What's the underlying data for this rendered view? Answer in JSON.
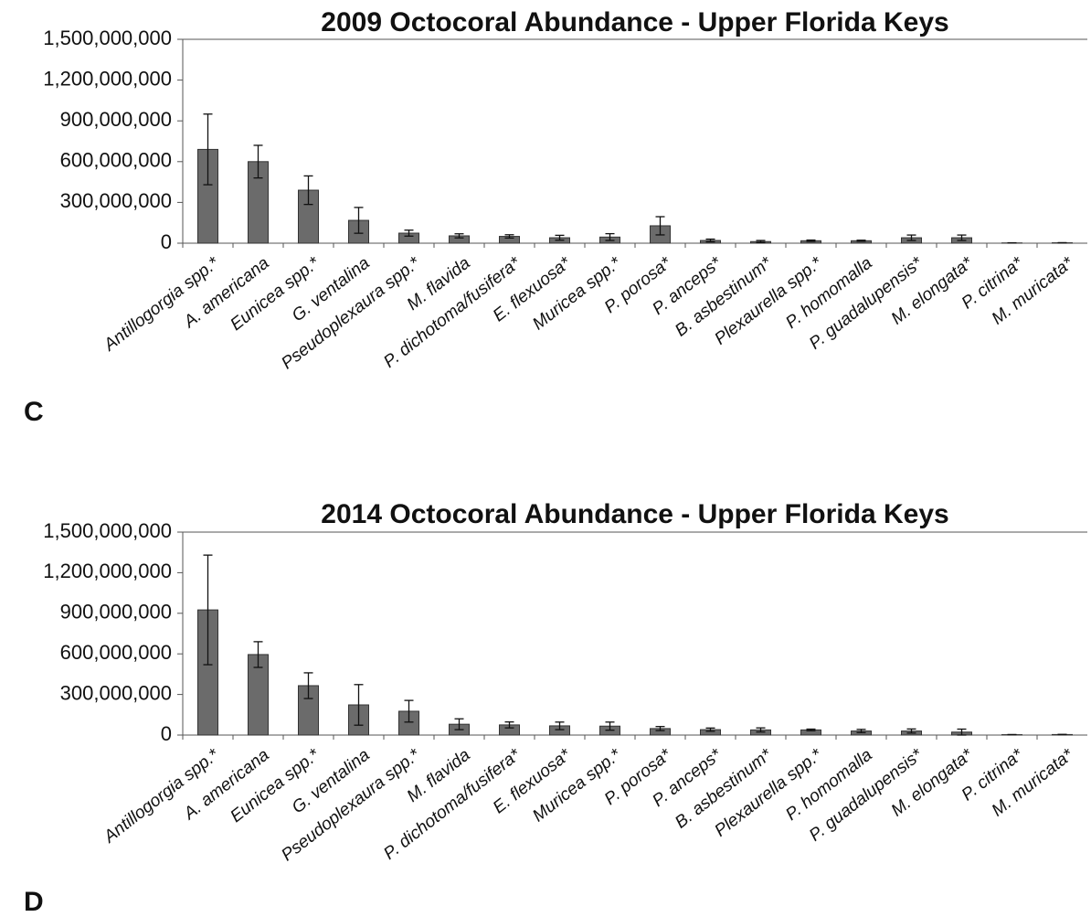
{
  "chart_data": [
    {
      "type": "bar",
      "title": "2009 Octocoral Abundance - Upper Florida Keys",
      "panel": "C",
      "categories": [
        "Antillogorgia spp.*",
        "A. americana",
        "Eunicea spp.*",
        "G. ventalina",
        "Pseudoplexaura spp.*",
        "M. flavida",
        "P. dichotoma/fusifera*",
        "E. flexuosa*",
        "Muricea spp.*",
        "P. porosa*",
        "P. anceps*",
        "B. asbestinum*",
        "Plexaurella spp.*",
        "P. homomalla",
        "P. guadalupensis*",
        "M. elongata*",
        "P. citrina*",
        "M. muricata*"
      ],
      "values": [
        690000000,
        600000000,
        390000000,
        168000000,
        74000000,
        54000000,
        50000000,
        40000000,
        45000000,
        128000000,
        20000000,
        12000000,
        18000000,
        18000000,
        40000000,
        40000000,
        2000000,
        3000000
      ],
      "errors": [
        260000000,
        120000000,
        105000000,
        95000000,
        22000000,
        15000000,
        12000000,
        18000000,
        25000000,
        67000000,
        10000000,
        8000000,
        5000000,
        4000000,
        20000000,
        20000000,
        1000000,
        1000000
      ],
      "color": "#6b6b6b",
      "ylim": [
        0,
        1500000000
      ],
      "yticks": [
        0,
        {
          "value": 300000000,
          "label": "300,000,000"
        },
        {
          "value": 600000000,
          "label": "600,000,000"
        },
        {
          "value": 900000000,
          "label": "900,000,000"
        },
        {
          "value": 1200000000,
          "label": "1,200,000,000"
        },
        {
          "value": 1500000000,
          "label": "1,500,000,000"
        }
      ]
    },
    {
      "type": "bar",
      "title": "2014 Octocoral Abundance - Upper Florida Keys",
      "panel": "D",
      "categories": [
        "Antillogorgia spp.*",
        "A. americana",
        "Eunicea spp.*",
        "G. ventalina",
        "Pseudoplexaura spp.*",
        "M. flavida",
        "P. dichotoma/fusifera*",
        "E. flexuosa*",
        "Muricea spp.*",
        "P. porosa*",
        "P. anceps*",
        "B. asbestinum*",
        "Plexaurella spp.*",
        "P. homomalla",
        "P. guadalupensis*",
        "M. elongata*",
        "P. citrina*",
        "M. muricata*"
      ],
      "values": [
        925000000,
        595000000,
        365000000,
        223000000,
        176000000,
        80000000,
        75000000,
        68000000,
        66000000,
        48000000,
        40000000,
        38000000,
        38000000,
        30000000,
        30000000,
        22000000,
        3000000,
        4000000
      ],
      "errors": [
        405000000,
        95000000,
        95000000,
        150000000,
        80000000,
        40000000,
        22000000,
        28000000,
        30000000,
        15000000,
        12000000,
        15000000,
        6000000,
        12000000,
        15000000,
        22000000,
        1000000,
        1000000
      ],
      "color": "#6b6b6b",
      "ylim": [
        0,
        1500000000
      ],
      "yticks": [
        0,
        {
          "value": 300000000,
          "label": "300,000,000"
        },
        {
          "value": 600000000,
          "label": "600,000,000"
        },
        {
          "value": 900000000,
          "label": "900,000,000"
        },
        {
          "value": 1200000000,
          "label": "1,200,000,000"
        },
        {
          "value": 1500000000,
          "label": "1,500,000,000"
        }
      ]
    }
  ]
}
